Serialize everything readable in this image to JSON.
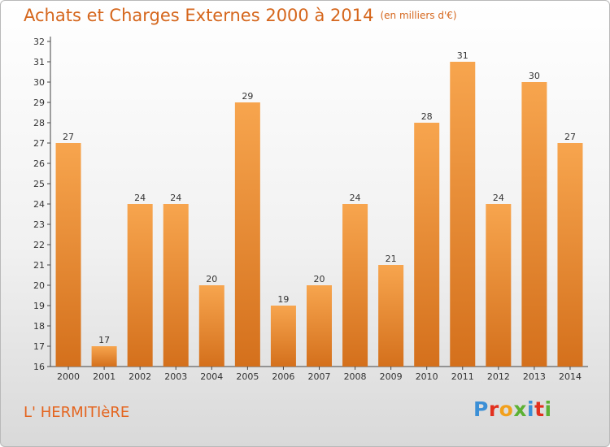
{
  "header": {
    "title": "Achats et Charges Externes 2000 à 2014",
    "unit": "(en milliers d'€)"
  },
  "footer": {
    "place": "L' HERMITIèRE",
    "logo": "Proxiti"
  },
  "colors": {
    "title": "#d5661c",
    "bar_light": "#f7a54e",
    "bar_dark": "#d4701c",
    "place": "#e4641e",
    "logo_letters": [
      "#3b8fd6",
      "#e2301e",
      "#f2a01c",
      "#5cb133",
      "#3b8fd6",
      "#e2301e",
      "#5cb133"
    ]
  },
  "chart_data": {
    "type": "bar",
    "title": "Achats et Charges Externes 2000 à 2014",
    "subtitle": "(en milliers d'€)",
    "categories": [
      "2000",
      "2001",
      "2002",
      "2003",
      "2004",
      "2005",
      "2006",
      "2007",
      "2008",
      "2009",
      "2010",
      "2011",
      "2012",
      "2013",
      "2014"
    ],
    "values": [
      27,
      17,
      24,
      24,
      20,
      29,
      19,
      20,
      24,
      21,
      28,
      31,
      24,
      30,
      27
    ],
    "ylim": [
      16,
      32
    ],
    "yticks": [
      16,
      17,
      18,
      19,
      20,
      21,
      22,
      23,
      24,
      25,
      26,
      27,
      28,
      29,
      30,
      31,
      32
    ],
    "grid": false,
    "legend": "none"
  }
}
